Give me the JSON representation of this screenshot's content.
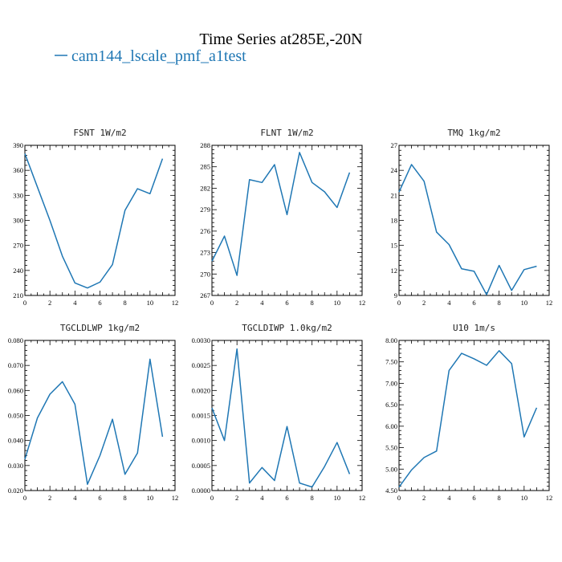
{
  "title": "Time Series at285E,-20N",
  "legend": {
    "label": "cam144_lscale_pmf_a1test",
    "color": "#1f77b4"
  },
  "chart_data": [
    {
      "type": "line",
      "title": "FSNT  1W/m2",
      "xlim": [
        0,
        12
      ],
      "ylim": [
        210,
        390
      ],
      "xticks": [
        0,
        2,
        4,
        6,
        8,
        10,
        12
      ],
      "yticks": [
        210,
        240,
        270,
        300,
        330,
        360,
        390
      ],
      "ytick_labels": [
        "210",
        "240",
        "270",
        "300",
        "330",
        "360",
        "390"
      ],
      "series": [
        {
          "x": [
            0,
            1,
            2,
            3,
            4,
            5,
            6,
            7,
            8,
            9,
            10,
            11
          ],
          "values": [
            380,
            340,
            300,
            257,
            225,
            219,
            226,
            247,
            312,
            338,
            332,
            374
          ]
        }
      ]
    },
    {
      "type": "line",
      "title": "FLNT  1W/m2",
      "xlim": [
        0,
        12
      ],
      "ylim": [
        267,
        288
      ],
      "xticks": [
        0,
        2,
        4,
        6,
        8,
        10,
        12
      ],
      "yticks": [
        267,
        270,
        273,
        276,
        279,
        282,
        285,
        288
      ],
      "ytick_labels": [
        "267",
        "270",
        "273",
        "276",
        "279",
        "282",
        "285",
        "288"
      ],
      "series": [
        {
          "x": [
            0,
            1,
            2,
            3,
            4,
            5,
            6,
            7,
            8,
            9,
            10,
            11
          ],
          "values": [
            271.8,
            275.3,
            269.8,
            283.2,
            282.8,
            285.3,
            278.3,
            287.0,
            282.8,
            281.5,
            279.3,
            284.2
          ]
        }
      ]
    },
    {
      "type": "line",
      "title": "TMQ  1kg/m2",
      "xlim": [
        0,
        12
      ],
      "ylim": [
        9,
        27
      ],
      "xticks": [
        0,
        2,
        4,
        6,
        8,
        10,
        12
      ],
      "yticks": [
        9,
        12,
        15,
        18,
        21,
        24,
        27
      ],
      "ytick_labels": [
        "9",
        "12",
        "15",
        "18",
        "21",
        "24",
        "27"
      ],
      "series": [
        {
          "x": [
            0,
            1,
            2,
            3,
            4,
            5,
            6,
            7,
            8,
            9,
            10,
            11
          ],
          "values": [
            21.4,
            24.7,
            22.7,
            16.6,
            15.1,
            12.2,
            11.9,
            9.1,
            12.6,
            9.6,
            12.1,
            12.5
          ]
        }
      ]
    },
    {
      "type": "line",
      "title": "TGCLDLWP  1kg/m2",
      "xlim": [
        0,
        12
      ],
      "ylim": [
        0.02,
        0.08
      ],
      "xticks": [
        0,
        2,
        4,
        6,
        8,
        10,
        12
      ],
      "yticks": [
        0.02,
        0.03,
        0.04,
        0.05,
        0.06,
        0.07,
        0.08
      ],
      "ytick_labels": [
        "0.020",
        "0.030",
        "0.040",
        "0.050",
        "0.060",
        "0.070",
        "0.080"
      ],
      "series": [
        {
          "x": [
            0,
            1,
            2,
            3,
            4,
            5,
            6,
            7,
            8,
            9,
            10,
            11
          ],
          "values": [
            0.0325,
            0.049,
            0.0585,
            0.0635,
            0.0545,
            0.0225,
            0.034,
            0.0485,
            0.0265,
            0.035,
            0.0725,
            0.0415
          ]
        }
      ]
    },
    {
      "type": "line",
      "title": "TGCLDIWP  1.0kg/m2",
      "xlim": [
        0,
        12
      ],
      "ylim": [
        0,
        0.003
      ],
      "xticks": [
        0,
        2,
        4,
        6,
        8,
        10,
        12
      ],
      "yticks": [
        0,
        0.0005,
        0.001,
        0.0015,
        0.002,
        0.0025,
        0.003
      ],
      "ytick_labels": [
        "0.0000",
        "0.0005",
        "0.0010",
        "0.0015",
        "0.0020",
        "0.0025",
        "0.0030"
      ],
      "series": [
        {
          "x": [
            0,
            1,
            2,
            3,
            4,
            5,
            6,
            7,
            8,
            9,
            10,
            11
          ],
          "values": [
            0.00165,
            0.001,
            0.00283,
            0.00015,
            0.00046,
            0.0002,
            0.00128,
            0.00015,
            7e-05,
            0.00048,
            0.00096,
            0.00033
          ]
        }
      ]
    },
    {
      "type": "line",
      "title": "U10  1m/s",
      "xlim": [
        0,
        12
      ],
      "ylim": [
        4.5,
        8.0
      ],
      "xticks": [
        0,
        2,
        4,
        6,
        8,
        10,
        12
      ],
      "yticks": [
        4.5,
        5.0,
        5.5,
        6.0,
        6.5,
        7.0,
        7.5,
        8.0
      ],
      "ytick_labels": [
        "4.50",
        "5.00",
        "5.50",
        "6.00",
        "6.50",
        "7.00",
        "7.50",
        "8.00"
      ],
      "series": [
        {
          "x": [
            0,
            1,
            2,
            3,
            4,
            5,
            6,
            7,
            8,
            9,
            10,
            11
          ],
          "values": [
            4.58,
            4.98,
            5.27,
            5.42,
            7.3,
            7.7,
            7.57,
            7.42,
            7.76,
            7.46,
            5.75,
            6.43
          ]
        }
      ]
    }
  ]
}
